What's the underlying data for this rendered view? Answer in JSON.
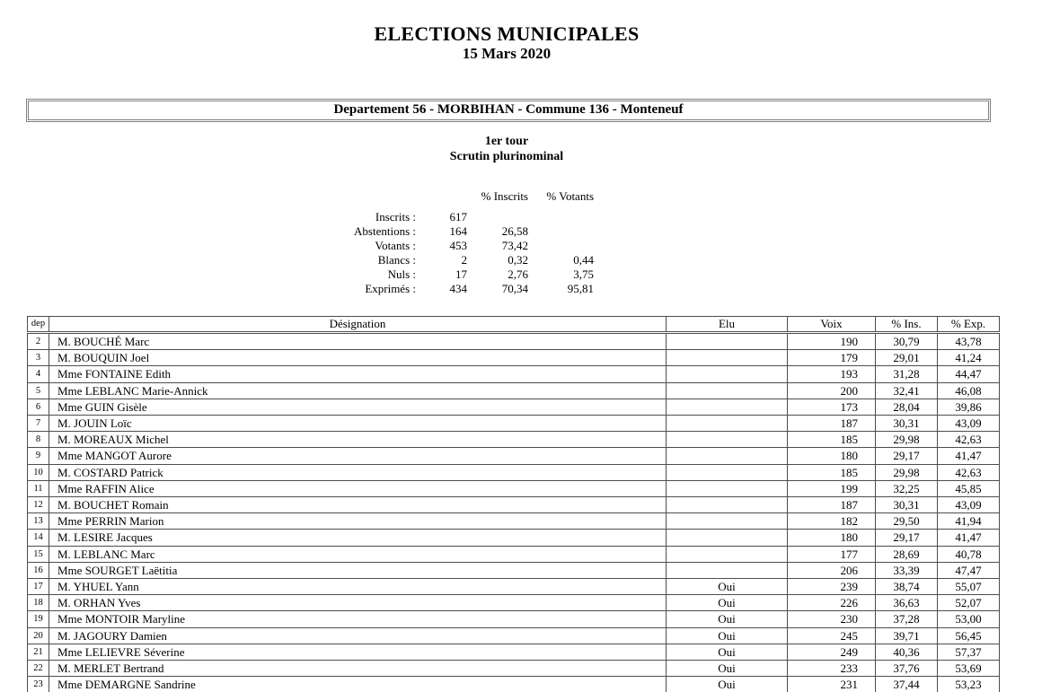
{
  "document": {
    "title": "ELECTIONS MUNICIPALES",
    "date": "15 Mars 2020"
  },
  "banner": {
    "text": "Departement 56 - MORBIHAN - Commune 136 - Monteneuf"
  },
  "round": {
    "tour": "1er tour",
    "scrutin": "Scrutin plurinominal"
  },
  "participation": {
    "headers": {
      "pct_inscrits": "% Inscrits",
      "pct_votants": "% Votants"
    },
    "rows": [
      {
        "label": "Inscrits :",
        "value": "617",
        "pct_inscrits": "",
        "pct_votants": ""
      },
      {
        "label": "Abstentions :",
        "value": "164",
        "pct_inscrits": "26,58",
        "pct_votants": ""
      },
      {
        "label": "Votants :",
        "value": "453",
        "pct_inscrits": "73,42",
        "pct_votants": ""
      },
      {
        "label": "Blancs :",
        "value": "2",
        "pct_inscrits": "0,32",
        "pct_votants": "0,44"
      },
      {
        "label": "Nuls :",
        "value": "17",
        "pct_inscrits": "2,76",
        "pct_votants": "3,75"
      },
      {
        "label": "Exprimés :",
        "value": "434",
        "pct_inscrits": "70,34",
        "pct_votants": "95,81"
      }
    ]
  },
  "results": {
    "columns": {
      "dep": "dep",
      "designation": "Désignation",
      "elu": "Elu",
      "voix": "Voix",
      "pct_ins": "% Ins.",
      "pct_exp": "% Exp."
    },
    "rows": [
      {
        "dep": "2",
        "designation": "M. BOUCHÉ Marc",
        "elu": "",
        "voix": "190",
        "pct_ins": "30,79",
        "pct_exp": "43,78"
      },
      {
        "dep": "3",
        "designation": "M. BOUQUIN Joel",
        "elu": "",
        "voix": "179",
        "pct_ins": "29,01",
        "pct_exp": "41,24"
      },
      {
        "dep": "4",
        "designation": "Mme FONTAINE Edith",
        "elu": "",
        "voix": "193",
        "pct_ins": "31,28",
        "pct_exp": "44,47"
      },
      {
        "dep": "5",
        "designation": "Mme LEBLANC Marie-Annick",
        "elu": "",
        "voix": "200",
        "pct_ins": "32,41",
        "pct_exp": "46,08"
      },
      {
        "dep": "6",
        "designation": "Mme GUIN Gisèle",
        "elu": "",
        "voix": "173",
        "pct_ins": "28,04",
        "pct_exp": "39,86"
      },
      {
        "dep": "7",
        "designation": "M. JOUIN Loïc",
        "elu": "",
        "voix": "187",
        "pct_ins": "30,31",
        "pct_exp": "43,09"
      },
      {
        "dep": "8",
        "designation": "M. MOREAUX Michel",
        "elu": "",
        "voix": "185",
        "pct_ins": "29,98",
        "pct_exp": "42,63"
      },
      {
        "dep": "9",
        "designation": "Mme MANGOT Aurore",
        "elu": "",
        "voix": "180",
        "pct_ins": "29,17",
        "pct_exp": "41,47"
      },
      {
        "dep": "10",
        "designation": "M. COSTARD Patrick",
        "elu": "",
        "voix": "185",
        "pct_ins": "29,98",
        "pct_exp": "42,63"
      },
      {
        "dep": "11",
        "designation": "Mme RAFFIN Alice",
        "elu": "",
        "voix": "199",
        "pct_ins": "32,25",
        "pct_exp": "45,85"
      },
      {
        "dep": "12",
        "designation": "M. BOUCHET Romain",
        "elu": "",
        "voix": "187",
        "pct_ins": "30,31",
        "pct_exp": "43,09"
      },
      {
        "dep": "13",
        "designation": "Mme PERRIN Marion",
        "elu": "",
        "voix": "182",
        "pct_ins": "29,50",
        "pct_exp": "41,94"
      },
      {
        "dep": "14",
        "designation": "M. LESIRE Jacques",
        "elu": "",
        "voix": "180",
        "pct_ins": "29,17",
        "pct_exp": "41,47"
      },
      {
        "dep": "15",
        "designation": "M. LEBLANC Marc",
        "elu": "",
        "voix": "177",
        "pct_ins": "28,69",
        "pct_exp": "40,78"
      },
      {
        "dep": "16",
        "designation": "Mme SOURGET Laëtitia",
        "elu": "",
        "voix": "206",
        "pct_ins": "33,39",
        "pct_exp": "47,47"
      },
      {
        "dep": "17",
        "designation": "M. YHUEL Yann",
        "elu": "Oui",
        "voix": "239",
        "pct_ins": "38,74",
        "pct_exp": "55,07"
      },
      {
        "dep": "18",
        "designation": "M. ORHAN Yves",
        "elu": "Oui",
        "voix": "226",
        "pct_ins": "36,63",
        "pct_exp": "52,07"
      },
      {
        "dep": "19",
        "designation": "Mme MONTOIR Maryline",
        "elu": "Oui",
        "voix": "230",
        "pct_ins": "37,28",
        "pct_exp": "53,00"
      },
      {
        "dep": "20",
        "designation": "M. JAGOURY Damien",
        "elu": "Oui",
        "voix": "245",
        "pct_ins": "39,71",
        "pct_exp": "56,45"
      },
      {
        "dep": "21",
        "designation": "Mme LELIEVRE Séverine",
        "elu": "Oui",
        "voix": "249",
        "pct_ins": "40,36",
        "pct_exp": "57,37"
      },
      {
        "dep": "22",
        "designation": "M. MERLET Bertrand",
        "elu": "Oui",
        "voix": "233",
        "pct_ins": "37,76",
        "pct_exp": "53,69"
      },
      {
        "dep": "23",
        "designation": "Mme DEMARGNE Sandrine",
        "elu": "Oui",
        "voix": "231",
        "pct_ins": "37,44",
        "pct_exp": "53,23"
      }
    ]
  }
}
